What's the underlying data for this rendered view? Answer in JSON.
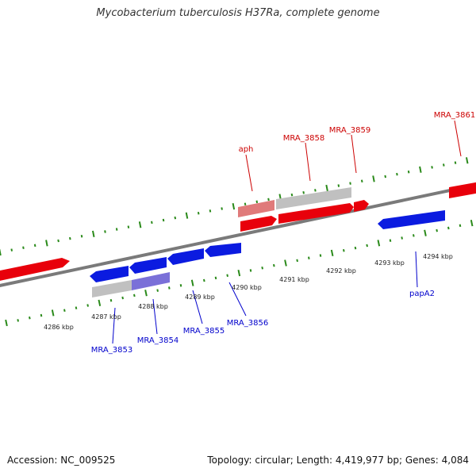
{
  "title": "Mycobacterium tuberculosis H37Ra, complete genome",
  "accession_text": "Accession: NC_009525",
  "summary_text": "Topology: circular; Length: 4,419,977 bp; Genes: 4,084",
  "colors": {
    "forward": "#e8000b",
    "reverse": "#0b1be0",
    "gray_gene": "#c0c0c0",
    "pink_gene": "#e07a7a",
    "purple_gene": "#7a70d8",
    "backbone": "#7a7a7a",
    "tick": "#2a8a1a",
    "forward_label": "#cc0000",
    "reverse_label": "#0000cc"
  },
  "scale_labels": [
    "4286 kbp",
    "4287 kbp",
    "4288 kbp",
    "4289 kbp",
    "4290 kbp",
    "4291 kbp",
    "4292 kbp",
    "4293 kbp",
    "4294 kbp"
  ],
  "forward_gene_labels": [
    "aph",
    "MRA_3858",
    "MRA_3859",
    "MRA_3861"
  ],
  "reverse_gene_labels": [
    "MRA_3853",
    "MRA_3854",
    "MRA_3855",
    "MRA_3856",
    "papA2"
  ]
}
